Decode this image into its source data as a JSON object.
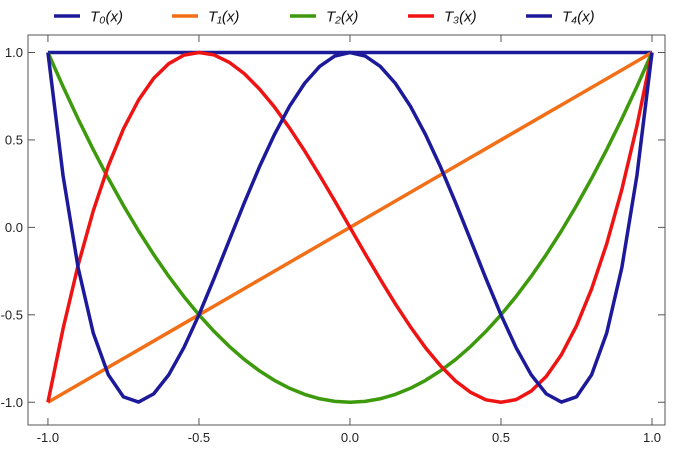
{
  "chart_data": {
    "type": "line",
    "x": [
      -1,
      -0.95,
      -0.9,
      -0.85,
      -0.8,
      -0.75,
      -0.7,
      -0.65,
      -0.6,
      -0.55,
      -0.5,
      -0.45,
      -0.4,
      -0.35,
      -0.3,
      -0.25,
      -0.2,
      -0.15,
      -0.1,
      -0.05,
      0,
      0.05,
      0.1,
      0.15,
      0.2,
      0.25,
      0.3,
      0.35,
      0.4,
      0.45,
      0.5,
      0.55,
      0.6,
      0.65,
      0.7,
      0.75,
      0.8,
      0.85,
      0.9,
      0.95,
      1
    ],
    "series": [
      {
        "name": "T₀(x)",
        "color": "#1c1a9a",
        "values": [
          1,
          1,
          1,
          1,
          1,
          1,
          1,
          1,
          1,
          1,
          1,
          1,
          1,
          1,
          1,
          1,
          1,
          1,
          1,
          1,
          1,
          1,
          1,
          1,
          1,
          1,
          1,
          1,
          1,
          1,
          1,
          1,
          1,
          1,
          1,
          1,
          1,
          1,
          1,
          1,
          1
        ]
      },
      {
        "name": "T₁(x)",
        "color": "#f26f17",
        "values": [
          -1,
          -0.95,
          -0.9,
          -0.85,
          -0.8,
          -0.75,
          -0.7,
          -0.65,
          -0.6,
          -0.55,
          -0.5,
          -0.45,
          -0.4,
          -0.35,
          -0.3,
          -0.25,
          -0.2,
          -0.15,
          -0.1,
          -0.05,
          0,
          0.05,
          0.1,
          0.15,
          0.2,
          0.25,
          0.3,
          0.35,
          0.4,
          0.45,
          0.5,
          0.55,
          0.6,
          0.65,
          0.7,
          0.75,
          0.8,
          0.85,
          0.9,
          0.95,
          1
        ]
      },
      {
        "name": "T₂(x)",
        "color": "#3d9a0c",
        "values": [
          1,
          0.805,
          0.62,
          0.445,
          0.28,
          0.125,
          -0.02,
          -0.155,
          -0.28,
          -0.395,
          -0.5,
          -0.595,
          -0.68,
          -0.755,
          -0.82,
          -0.875,
          -0.92,
          -0.955,
          -0.98,
          -0.995,
          -1,
          -0.995,
          -0.98,
          -0.955,
          -0.92,
          -0.875,
          -0.82,
          -0.755,
          -0.68,
          -0.595,
          -0.5,
          -0.395,
          -0.28,
          -0.155,
          -0.02,
          0.125,
          0.28,
          0.445,
          0.62,
          0.805,
          1
        ]
      },
      {
        "name": "T₃(x)",
        "color": "#ee1414",
        "values": [
          -1,
          -0.58,
          -0.216,
          0.094,
          0.352,
          0.563,
          0.728,
          0.852,
          0.936,
          0.985,
          1,
          0.986,
          0.944,
          0.879,
          0.792,
          0.688,
          0.568,
          0.437,
          0.296,
          0.15,
          0,
          -0.15,
          -0.296,
          -0.437,
          -0.568,
          -0.688,
          -0.792,
          -0.879,
          -0.944,
          -0.986,
          -1,
          -0.985,
          -0.936,
          -0.852,
          -0.728,
          -0.563,
          -0.352,
          -0.094,
          0.216,
          0.58,
          1
        ]
      },
      {
        "name": "T₄(x)",
        "color": "#1c1a9a",
        "values": [
          1,
          0.296,
          -0.231,
          -0.604,
          -0.843,
          -0.969,
          -0.999,
          -0.952,
          -0.843,
          -0.688,
          -0.5,
          -0.292,
          -0.075,
          0.14,
          0.345,
          0.531,
          0.693,
          0.824,
          0.921,
          0.98,
          1,
          0.98,
          0.921,
          0.824,
          0.693,
          0.531,
          0.345,
          0.14,
          -0.075,
          -0.292,
          -0.5,
          -0.688,
          -0.843,
          -0.952,
          -0.999,
          -0.969,
          -0.843,
          -0.604,
          -0.231,
          0.296,
          1
        ]
      }
    ],
    "xlim": [
      -1.066,
      1.043
    ],
    "ylim": [
      -1.13,
      1.1
    ],
    "xticks": [
      {
        "value": -1,
        "label": "-1.0"
      },
      -0.5,
      {
        "value": 0,
        "label": "0.0"
      },
      0.5,
      {
        "value": 1,
        "label": "1.0"
      }
    ],
    "yticks": [
      {
        "value": -1,
        "label": "-1.0"
      },
      -0.5,
      {
        "value": 0,
        "label": "0.0"
      },
      0.5,
      {
        "value": 1,
        "label": "1.0"
      }
    ],
    "legend": "top"
  }
}
